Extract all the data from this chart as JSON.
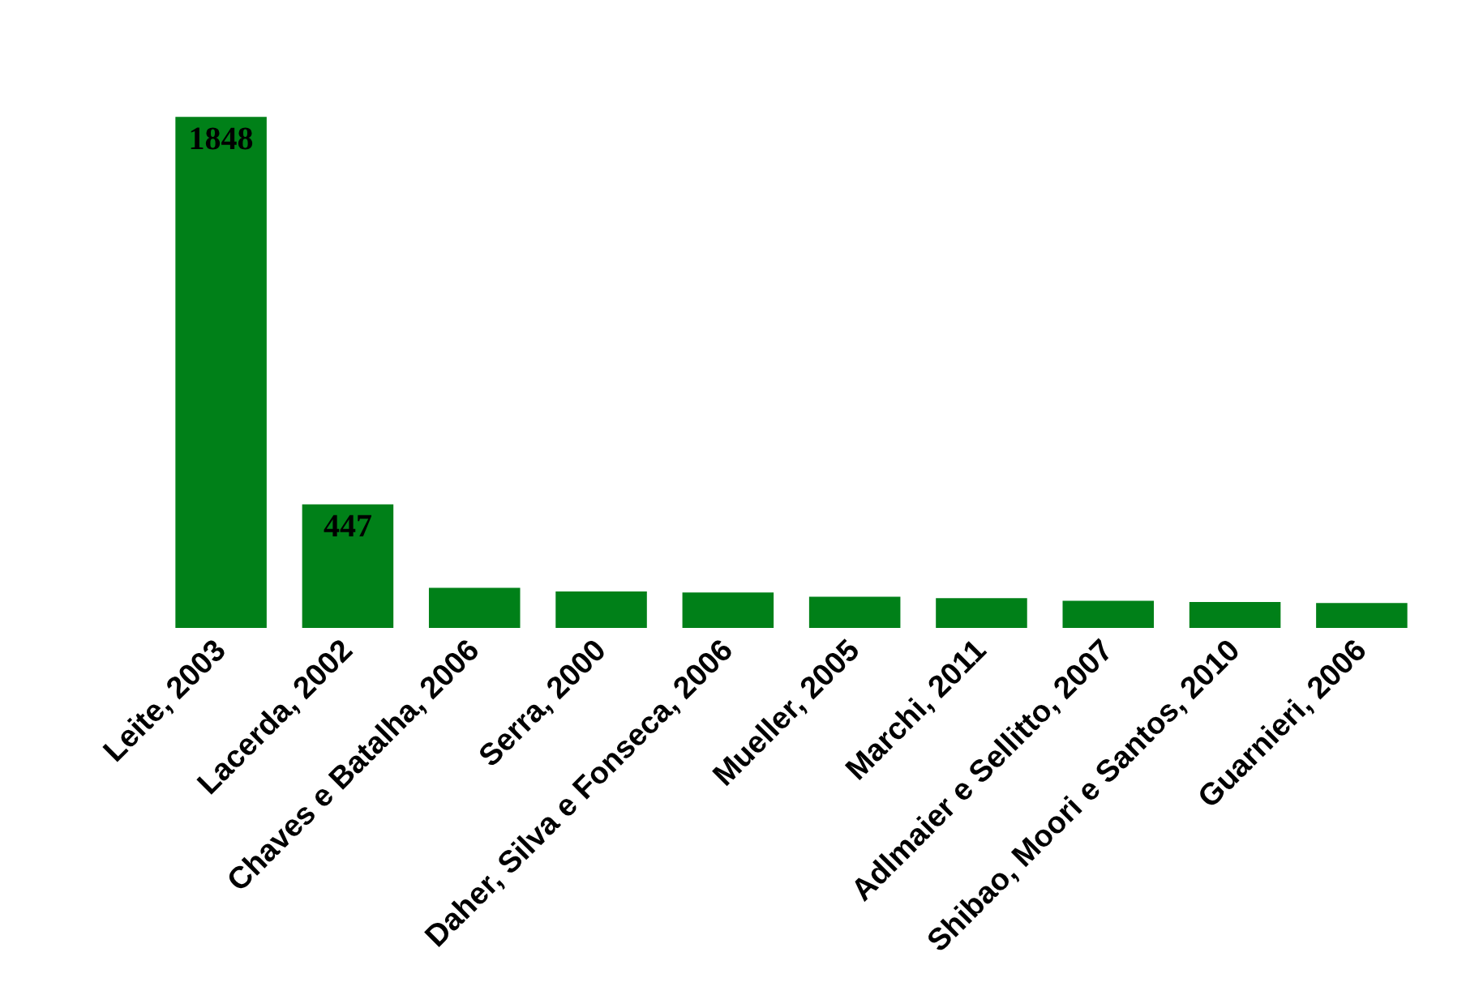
{
  "chart_data": {
    "type": "bar",
    "categories": [
      "Leite, 2003",
      "Lacerda, 2002",
      "Chaves e Batalha, 2006",
      "Serra, 2000",
      "Daher, Silva e Fonseca, 2006",
      "Mueller, 2005",
      "Marchi, 2011",
      "Adlmaier e Sellitto, 2007",
      "Shibao, Moori e Santos, 2010",
      "Guarnieri, 2006"
    ],
    "values": [
      1848,
      447,
      145,
      132,
      128,
      113,
      108,
      98,
      94,
      90
    ],
    "value_labels": [
      "1848",
      "447",
      null,
      null,
      null,
      null,
      null,
      null,
      null,
      null
    ],
    "color": "#008018",
    "grid": false
  }
}
